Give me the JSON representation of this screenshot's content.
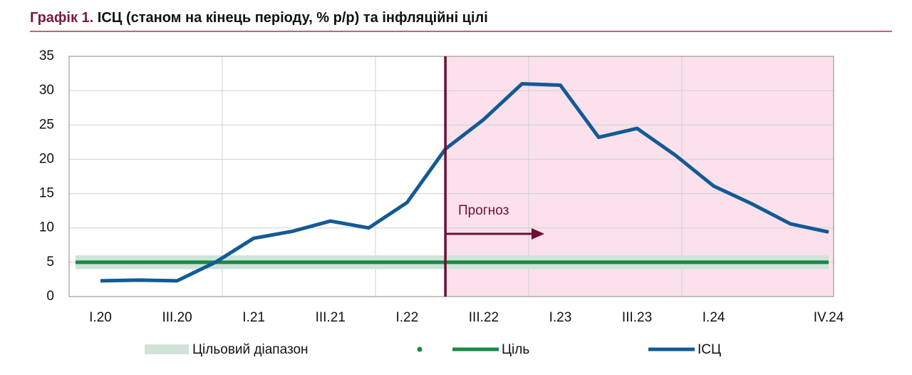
{
  "chart_data": {
    "type": "line",
    "title_number": "Графік 1.",
    "title": "ІСЦ (станом на кінець періоду, % р/р) та інфляційні цілі",
    "categories": [
      "I.20",
      null,
      "III.20",
      null,
      "I.21",
      null,
      "III.21",
      null,
      "I.22",
      null,
      "III.22",
      null,
      "I.23",
      null,
      "III.23",
      null,
      "I.24",
      null,
      null,
      "IV.24"
    ],
    "target_band": {
      "name": "Цільовий діапазон",
      "color": "#cfe3d8",
      "range": [
        4,
        6
      ]
    },
    "series": [
      {
        "name": "Ціль",
        "color": "#168a44",
        "values": [
          5,
          5,
          5,
          5,
          5,
          5,
          5,
          5,
          5,
          5,
          5,
          5,
          5,
          5,
          5,
          5,
          5,
          5,
          5,
          5
        ]
      },
      {
        "name": "ІСЦ",
        "color": "#135a96",
        "values": [
          2.3,
          2.4,
          2.3,
          5.0,
          8.5,
          9.5,
          11.0,
          10.0,
          13.7,
          21.5,
          25.8,
          31.0,
          30.8,
          23.2,
          24.5,
          20.6,
          16.1,
          13.5,
          10.6,
          9.4
        ]
      }
    ],
    "annotation": "Прогноз",
    "forecast_color": "#fbe1ec",
    "ylim": [
      0,
      35
    ],
    "yticks": [
      0,
      5,
      10,
      15,
      20,
      25,
      30,
      35
    ],
    "grid": true
  }
}
